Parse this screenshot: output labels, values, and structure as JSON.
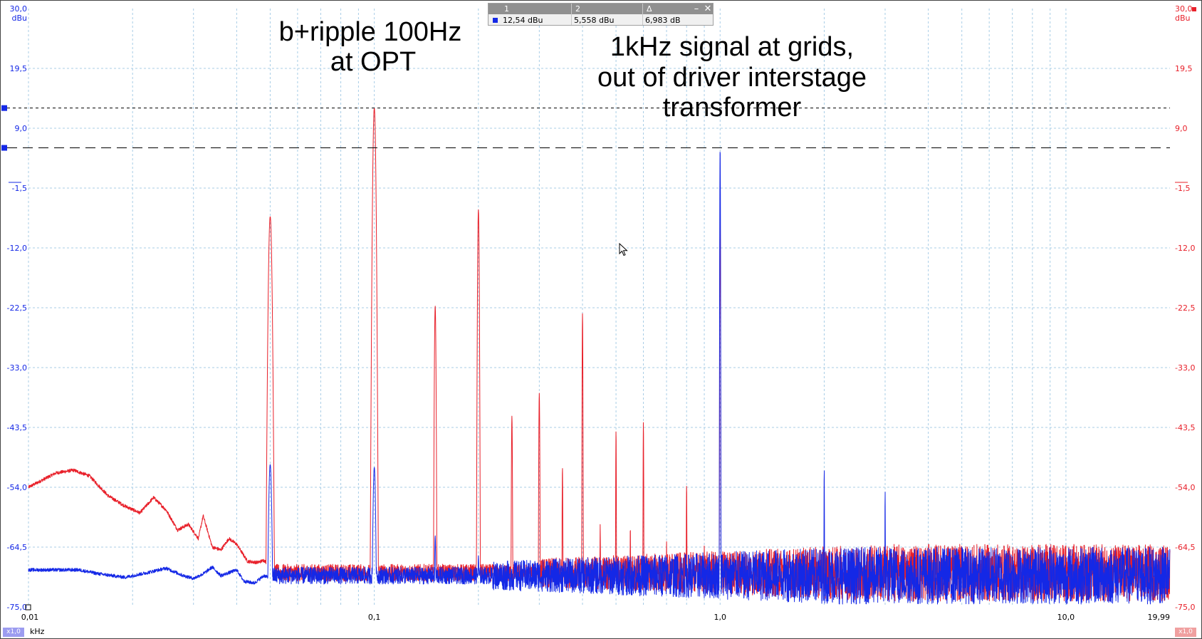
{
  "annotations": {
    "ripple": [
      "b+ripple 100Hz",
      "at OPT"
    ],
    "signal": [
      "1kHz signal at grids,",
      "out of driver interstage",
      "transformer"
    ]
  },
  "cursor_readout": {
    "col1_header": "1",
    "col2_header": "2",
    "col3_header": "Δ",
    "val1": "12,54 dBu",
    "val2": "5,558 dBu",
    "delta": "6,983 dB",
    "minimize_icon": "minimize-icon",
    "close_icon": "close-icon"
  },
  "x_badge_left": "x1,0",
  "x_badge_right": "x1,0",
  "x_unit": "kHz",
  "colors": {
    "red": "#e8202a",
    "blue": "#1428e6",
    "grid": "#a8cde6"
  },
  "chart_data": {
    "type": "line",
    "x_scale": "log",
    "xlim": [
      0.01,
      19.99
    ],
    "ylim": [
      -75.0,
      30.0
    ],
    "x_unit": "kHz",
    "y_unit": "dBu",
    "x_tick_labels": [
      "0,01",
      "0,1",
      "1,0",
      "10,0",
      "19,99"
    ],
    "x_ticks": [
      0.01,
      0.1,
      1.0,
      10.0,
      19.99
    ],
    "y_tick_labels": [
      "30,0",
      "19,5",
      "9,0",
      "-1,5",
      "-12,0",
      "-22,5",
      "-33,0",
      "-43,5",
      "-54,0",
      "-64,5",
      "-75,0"
    ],
    "y_ticks": [
      30.0,
      19.5,
      9.0,
      -1.5,
      -12.0,
      -22.5,
      -33.0,
      -43.5,
      -54.0,
      -64.5,
      -75.0
    ],
    "left_axis_unit": "dBu",
    "right_axis_unit": "dBu",
    "cursors": [
      12.54,
      5.558
    ],
    "grid": true,
    "series": [
      {
        "color": "#e8202a",
        "baseline": -69,
        "lowfreq": [
          [
            0.01,
            -54
          ],
          [
            0.012,
            -51.5
          ],
          [
            0.0135,
            -51
          ],
          [
            0.015,
            -52
          ],
          [
            0.017,
            -55.5
          ],
          [
            0.019,
            -57.3
          ],
          [
            0.021,
            -58.5
          ],
          [
            0.023,
            -55.8
          ],
          [
            0.025,
            -58
          ],
          [
            0.027,
            -61.5
          ],
          [
            0.029,
            -60.5
          ],
          [
            0.031,
            -63
          ],
          [
            0.032,
            -59
          ],
          [
            0.034,
            -64.5
          ],
          [
            0.036,
            -65
          ],
          [
            0.038,
            -63
          ],
          [
            0.04,
            -64
          ],
          [
            0.043,
            -67
          ],
          [
            0.046,
            -67.2
          ],
          [
            0.048,
            -66.8
          ],
          [
            0.05,
            -68
          ]
        ],
        "peaks": [
          [
            0.05,
            -6.5,
            2.6
          ],
          [
            0.1,
            12.54,
            2.2
          ],
          [
            0.15,
            -22.2,
            1.2
          ],
          [
            0.2,
            -5.3,
            1.2
          ],
          [
            0.25,
            -41.5,
            0.8
          ],
          [
            0.3,
            -37.5,
            0.8
          ],
          [
            0.35,
            -50.5,
            0.6
          ],
          [
            0.4,
            -23.5,
            0.6
          ],
          [
            0.45,
            -60.5,
            0.5
          ],
          [
            0.5,
            -44,
            0.5
          ],
          [
            0.55,
            -60.8,
            0.5
          ],
          [
            0.6,
            -42.5,
            0.5
          ],
          [
            0.7,
            -63.5,
            0.5
          ],
          [
            0.8,
            -53.5,
            0.5
          ],
          [
            0.9,
            -64,
            0.5
          ],
          [
            1.0,
            -5.5,
            0.5
          ]
        ],
        "noise_start": 0.3,
        "noise_amp": 5
      },
      {
        "color": "#1428e6",
        "baseline": -69.5,
        "lowfreq": [
          [
            0.01,
            -68.5
          ],
          [
            0.014,
            -68.5
          ],
          [
            0.016,
            -69.2
          ],
          [
            0.019,
            -69.8
          ],
          [
            0.022,
            -69
          ],
          [
            0.025,
            -68.2
          ],
          [
            0.028,
            -69.5
          ],
          [
            0.03,
            -70
          ],
          [
            0.032,
            -69.2
          ],
          [
            0.034,
            -68
          ],
          [
            0.036,
            -69.5
          ],
          [
            0.038,
            -69
          ],
          [
            0.04,
            -68.5
          ],
          [
            0.042,
            -70.5
          ],
          [
            0.045,
            -70.8
          ],
          [
            0.048,
            -69.5
          ],
          [
            0.05,
            -70
          ]
        ],
        "peaks": [
          [
            0.05,
            -50,
            2.6
          ],
          [
            0.1,
            -50.5,
            2.2
          ],
          [
            0.15,
            -62.5,
            1.2
          ],
          [
            0.2,
            -66,
            1
          ],
          [
            1.0,
            5.558,
            0.5
          ],
          [
            2.0,
            -50.5,
            0.4
          ],
          [
            3.0,
            -54.5,
            0.4
          ],
          [
            4.0,
            -66,
            0.4
          ],
          [
            5.0,
            -64.5,
            0.4
          ],
          [
            6.0,
            -66,
            0.4
          ],
          [
            7.0,
            -67,
            0.4
          ],
          [
            8.0,
            -65.5,
            0.4
          ],
          [
            9.0,
            -64.5,
            0.4
          ]
        ],
        "noise_start": 0.22,
        "noise_amp": 5
      }
    ]
  }
}
